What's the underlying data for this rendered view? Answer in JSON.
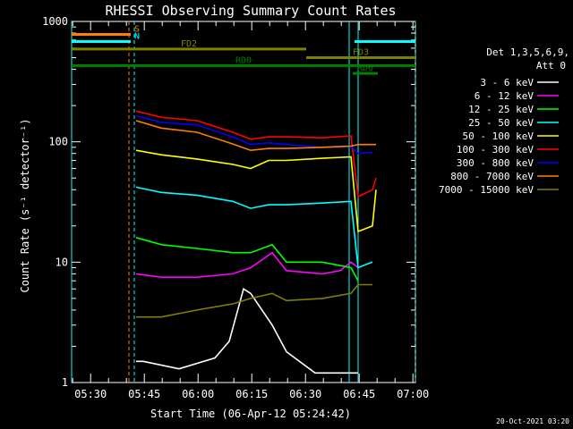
{
  "chart_data": {
    "type": "line",
    "title": "RHESSI Observing Summary Count Rates",
    "ylabel": "Count Rate (s⁻¹ detector⁻¹)",
    "xlabel": "Start Time (06-Apr-12 05:24:42)",
    "yscale": "log",
    "ylim": [
      1,
      1000
    ],
    "xlim_minutes": [
      0,
      96
    ],
    "x_ticks": [
      "05:30",
      "05:45",
      "06:00",
      "06:15",
      "06:30",
      "06:45",
      "07:00"
    ],
    "y_ticks": [
      "1",
      "10",
      "100",
      "1000"
    ],
    "detectors": "Det 1,3,5,6,9,",
    "attenuator": "Att 0",
    "series": [
      {
        "name": "3 - 6 keV",
        "color": "#ffffff",
        "x": [
          18,
          20,
          30,
          40,
          44,
          48,
          50,
          56,
          60,
          68,
          74,
          78,
          80
        ],
        "y": [
          1.5,
          1.5,
          1.3,
          1.6,
          2.2,
          6.0,
          5.5,
          3.0,
          1.8,
          1.2,
          1.2,
          1.2,
          1.2
        ]
      },
      {
        "name": "6 - 12 keV",
        "color": "#ff00ff",
        "x": [
          18,
          25,
          35,
          45,
          50,
          56,
          60,
          70,
          75,
          78,
          80
        ],
        "y": [
          8.0,
          7.5,
          7.5,
          8.0,
          9.0,
          12.0,
          8.5,
          8.0,
          8.5,
          10.0,
          9.0
        ]
      },
      {
        "name": "12 - 25 keV",
        "color": "#00ff00",
        "x": [
          18,
          25,
          35,
          45,
          50,
          56,
          60,
          70,
          78,
          80
        ],
        "y": [
          16.0,
          14.0,
          13.0,
          12.0,
          12.0,
          14.0,
          10.0,
          10.0,
          9.0,
          7.0
        ]
      },
      {
        "name": "25 - 50 keV",
        "color": "#00ffff",
        "x": [
          18,
          25,
          35,
          45,
          50,
          55,
          60,
          70,
          78,
          80,
          82,
          84
        ],
        "y": [
          42.0,
          38.0,
          36.0,
          32.0,
          28.0,
          30.0,
          30.0,
          31.0,
          32.0,
          9.0,
          9.5,
          10.0
        ]
      },
      {
        "name": "50 - 100 keV",
        "color": "#ffff00",
        "x": [
          18,
          25,
          35,
          45,
          50,
          55,
          60,
          70,
          78,
          80,
          84,
          85
        ],
        "y": [
          85.0,
          78.0,
          72.0,
          65.0,
          60.0,
          70.0,
          70.0,
          73.0,
          75.0,
          18.0,
          20.0,
          40.0
        ]
      },
      {
        "name": "100 - 300 keV",
        "color": "#ff0000",
        "x": [
          18,
          25,
          35,
          45,
          50,
          55,
          60,
          70,
          78,
          80,
          84,
          85
        ],
        "y": [
          180.0,
          160.0,
          150.0,
          120.0,
          105.0,
          110.0,
          110.0,
          108.0,
          112.0,
          35.0,
          40.0,
          50.0
        ]
      },
      {
        "name": "300 - 800 keV",
        "color": "#0000ff",
        "x": [
          18,
          25,
          35,
          45,
          50,
          55,
          60,
          70,
          78,
          80,
          84
        ],
        "y": [
          165.0,
          145.0,
          138.0,
          110.0,
          95.0,
          98.0,
          95.0,
          90.0,
          92.0,
          80.0,
          82.0
        ]
      },
      {
        "name": "800 - 7000 keV",
        "color": "#ff8000",
        "x": [
          18,
          25,
          35,
          45,
          50,
          55,
          60,
          70,
          78,
          80,
          85
        ],
        "y": [
          150.0,
          130.0,
          120.0,
          96.0,
          85.0,
          88.0,
          88.0,
          90.0,
          92.0,
          95.0,
          95.0
        ]
      },
      {
        "name": "7000 - 15000 keV",
        "color": "#808000",
        "x": [
          18,
          25,
          35,
          45,
          50,
          56,
          60,
          70,
          78,
          80,
          84
        ],
        "y": [
          3.5,
          3.5,
          4.0,
          4.5,
          5.0,
          5.5,
          4.8,
          5.0,
          5.5,
          6.5,
          6.5
        ]
      }
    ],
    "annotations": [
      {
        "label": "S",
        "color": "#ff8000",
        "x0": 0,
        "x1": 16.5,
        "y": 780
      },
      {
        "label": "N",
        "color": "#00ffff",
        "x0": 0,
        "x1": 16.5,
        "y": 680
      },
      {
        "label": "FD2",
        "color": "#808000",
        "x0": 0,
        "x1": 65.5,
        "y": 590
      },
      {
        "label": "FD3",
        "color": "#808000",
        "x0": 65.5,
        "x1": 96,
        "y": 500
      },
      {
        "label": "RD0",
        "color": "#008000",
        "x0": 0,
        "x1": 96,
        "y": 430
      },
      {
        "label": "RD6",
        "color": "#008000",
        "x0": 78.5,
        "x1": 85.5,
        "y": 370
      },
      {
        "label": "",
        "color": "#00ffff",
        "x0": 79,
        "x1": 96,
        "y": 680
      }
    ],
    "vlines": [
      {
        "x": 0,
        "color": "#00ffff",
        "dash": false
      },
      {
        "x": 16,
        "color": "#ff8000",
        "dash": true
      },
      {
        "x": 17.5,
        "color": "#00ffff",
        "dash": true
      },
      {
        "x": 77.5,
        "color": "#00ffff",
        "dash": false
      },
      {
        "x": 80,
        "color": "#00ffff",
        "dash": false
      },
      {
        "x": 96,
        "color": "#00ffff",
        "dash": true
      }
    ]
  },
  "footer": {
    "date": "20-Oct-2021 03:20"
  }
}
